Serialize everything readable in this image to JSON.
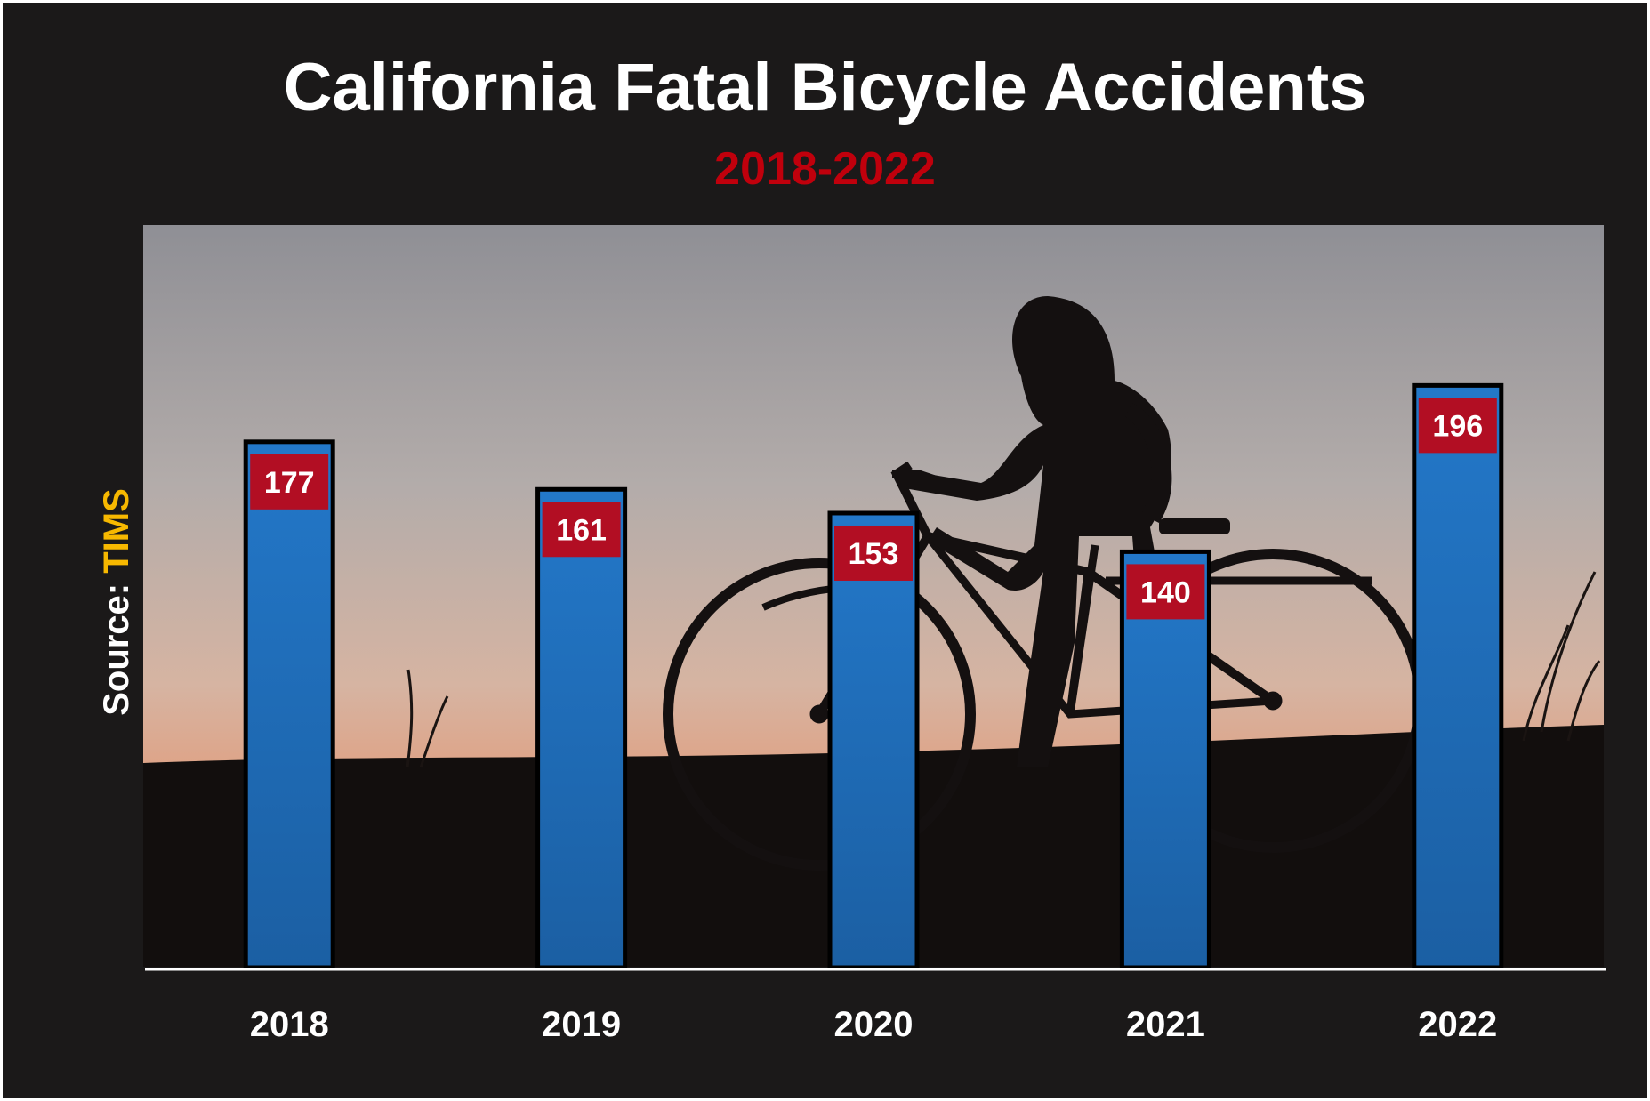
{
  "chart_data": {
    "type": "bar",
    "title": "California Fatal Bicycle Accidents",
    "subtitle": "2018-2022",
    "categories": [
      "2018",
      "2019",
      "2020",
      "2021",
      "2022"
    ],
    "values": [
      177,
      161,
      153,
      140,
      196
    ],
    "ylim": [
      0,
      250
    ],
    "grid": false,
    "legend": "none",
    "data_labels": true
  },
  "source": {
    "prefix": "Source: ",
    "value": "TIMS"
  },
  "colors": {
    "background": "#1b1919",
    "bar_fill": "#1f6fbd",
    "bar_outline": "#000000",
    "data_label_bg": "#b20e23",
    "title": "#ffffff",
    "subtitle": "#c0000c",
    "source_value": "#f7b800",
    "axis_line": "#ffffff"
  },
  "background_image": {
    "icon": "woman-walking-bicycle-sunset-silhouette"
  }
}
